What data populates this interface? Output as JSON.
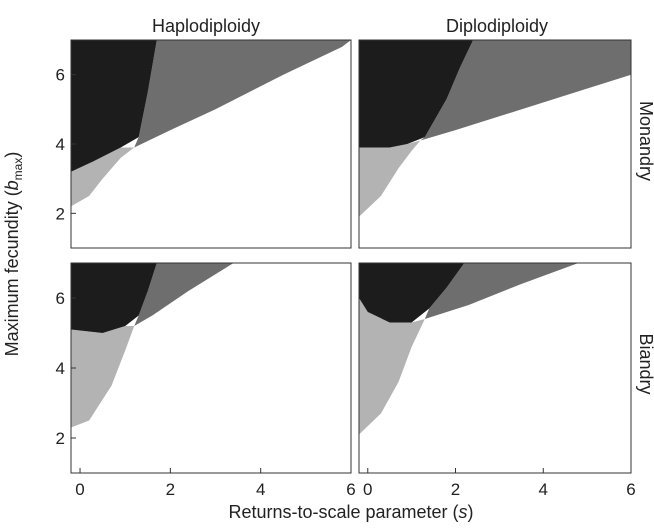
{
  "figure": {
    "xlabel_main": "Returns-to-scale parameter (",
    "xlabel_var": "s",
    "xlabel_end": ")",
    "ylabel_main": "Maximum fecundity (",
    "ylabel_var": "b",
    "ylabel_sub": "max",
    "ylabel_end": ")"
  },
  "chart_data": {
    "type": "heatmap",
    "columns": [
      "Haplodiploidy",
      "Diplodiploidy"
    ],
    "rows": [
      "Monandry",
      "Biandry"
    ],
    "xlim": [
      -0.2,
      6
    ],
    "ylim": [
      1,
      7
    ],
    "x_ticks": [
      "0",
      "2",
      "4",
      "6"
    ],
    "y_ticks": [
      "2",
      "4",
      "6"
    ],
    "colors": {
      "black_region": "#1c1c1c",
      "dark_gray_region": "#6e6e6e",
      "light_gray_region": "#b3b3b3",
      "white_region": "#ffffff"
    },
    "panels": [
      {
        "column": "Haplodiploidy",
        "row": "Monandry",
        "black_region": [
          [
            -0.2,
            7
          ],
          [
            1.7,
            7
          ],
          [
            1.5,
            5.5
          ],
          [
            1.3,
            4.2
          ],
          [
            0.9,
            3.9
          ],
          [
            0.3,
            3.5
          ],
          [
            -0.2,
            3.2
          ]
        ],
        "dark_gray_region": [
          [
            1.7,
            7
          ],
          [
            6,
            7
          ],
          [
            5.8,
            6.8
          ],
          [
            4.5,
            6.0
          ],
          [
            3.0,
            5.0
          ],
          [
            2.0,
            4.4
          ],
          [
            1.2,
            3.9
          ],
          [
            1.3,
            4.2
          ],
          [
            1.5,
            5.5
          ]
        ],
        "light_gray_region": [
          [
            -0.2,
            3.2
          ],
          [
            0.3,
            3.5
          ],
          [
            0.9,
            3.9
          ],
          [
            1.2,
            3.9
          ],
          [
            0.9,
            3.6
          ],
          [
            0.5,
            3.0
          ],
          [
            0.2,
            2.5
          ],
          [
            -0.2,
            2.2
          ]
        ]
      },
      {
        "column": "Diplodiploidy",
        "row": "Monandry",
        "black_region": [
          [
            -0.2,
            7
          ],
          [
            2.4,
            7
          ],
          [
            2.1,
            6.2
          ],
          [
            1.8,
            5.3
          ],
          [
            1.3,
            4.2
          ],
          [
            0.9,
            4.0
          ],
          [
            0.5,
            3.9
          ],
          [
            -0.2,
            3.9
          ]
        ],
        "dark_gray_region": [
          [
            2.4,
            7
          ],
          [
            6,
            7
          ],
          [
            6,
            6.0
          ],
          [
            4.5,
            5.4
          ],
          [
            3.0,
            4.8
          ],
          [
            2.0,
            4.4
          ],
          [
            1.2,
            4.1
          ],
          [
            1.3,
            4.2
          ],
          [
            1.8,
            5.3
          ],
          [
            2.1,
            6.2
          ]
        ],
        "light_gray_region": [
          [
            -0.2,
            3.9
          ],
          [
            0.5,
            3.9
          ],
          [
            0.9,
            4.0
          ],
          [
            1.2,
            4.1
          ],
          [
            1.0,
            3.8
          ],
          [
            0.7,
            3.3
          ],
          [
            0.3,
            2.5
          ],
          [
            -0.2,
            1.9
          ]
        ]
      },
      {
        "column": "Haplodiploidy",
        "row": "Biandry",
        "black_region": [
          [
            -0.2,
            7
          ],
          [
            1.7,
            7
          ],
          [
            1.5,
            6.2
          ],
          [
            1.3,
            5.5
          ],
          [
            1.0,
            5.2
          ],
          [
            0.5,
            5.0
          ],
          [
            -0.2,
            5.1
          ]
        ],
        "dark_gray_region": [
          [
            1.7,
            7
          ],
          [
            3.4,
            7
          ],
          [
            2.4,
            6.2
          ],
          [
            1.6,
            5.5
          ],
          [
            1.2,
            5.2
          ],
          [
            1.3,
            5.5
          ],
          [
            1.5,
            6.2
          ]
        ],
        "light_gray_region": [
          [
            -0.2,
            5.1
          ],
          [
            0.5,
            5.0
          ],
          [
            1.0,
            5.2
          ],
          [
            1.2,
            5.2
          ],
          [
            1.0,
            4.5
          ],
          [
            0.7,
            3.5
          ],
          [
            0.2,
            2.5
          ],
          [
            -0.2,
            2.3
          ]
        ]
      },
      {
        "column": "Diplodiploidy",
        "row": "Biandry",
        "black_region": [
          [
            -0.2,
            7
          ],
          [
            2.2,
            7
          ],
          [
            1.8,
            6.3
          ],
          [
            1.4,
            5.7
          ],
          [
            1.0,
            5.3
          ],
          [
            0.5,
            5.3
          ],
          [
            0.0,
            5.6
          ],
          [
            -0.2,
            6.0
          ]
        ],
        "dark_gray_region": [
          [
            2.2,
            7
          ],
          [
            4.8,
            7
          ],
          [
            3.5,
            6.4
          ],
          [
            2.3,
            5.8
          ],
          [
            1.3,
            5.4
          ],
          [
            1.4,
            5.7
          ],
          [
            1.8,
            6.3
          ]
        ],
        "light_gray_region": [
          [
            -0.2,
            6.0
          ],
          [
            0.0,
            5.6
          ],
          [
            0.5,
            5.3
          ],
          [
            1.0,
            5.3
          ],
          [
            1.3,
            5.4
          ],
          [
            1.0,
            4.6
          ],
          [
            0.7,
            3.6
          ],
          [
            0.3,
            2.7
          ],
          [
            -0.2,
            2.1
          ]
        ]
      }
    ]
  }
}
